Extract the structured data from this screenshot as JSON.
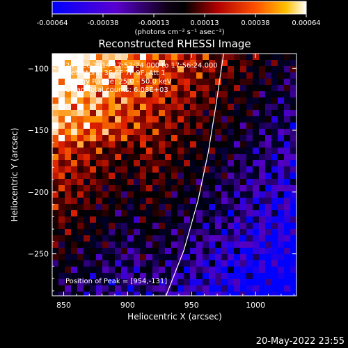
{
  "chart_data": {
    "type": "heatmap",
    "title": "Reconstructed RHESSI Image",
    "xlabel": "Heliocentric X (arcsec)",
    "ylabel": "Heliocentric Y (arcsec)",
    "xlim": [
      841,
      1032
    ],
    "ylim": [
      -284,
      -88
    ],
    "xticks": [
      850,
      900,
      950,
      1000
    ],
    "yticks": [
      -100,
      -150,
      -200,
      -250
    ],
    "colorbar": {
      "ticks": [
        "-0.00064",
        "-0.00038",
        "-0.00013",
        "0.00013",
        "0.00038",
        "0.00064"
      ],
      "range": [
        -0.00064,
        0.00064
      ],
      "unit_text": "(photons cm⁻² s⁻¹ asec⁻²)"
    },
    "annotations": [
      "24-Dec-2014 17:52:24.000 to 17:56:24.000",
      "Detectors: 3F 6F 7F 9F, Att 1",
      "Energy Range: 25.0 - 50.0 keV",
      "Clean    Total counts: 6.08E+03"
    ],
    "peak_label": "Position of Peak = [954,-131]",
    "limb_curve": [
      [
        930,
        -284
      ],
      [
        944,
        -247
      ],
      [
        955,
        -207
      ],
      [
        963,
        -168
      ],
      [
        969,
        -130
      ],
      [
        975,
        -88
      ]
    ],
    "grid": false
  },
  "timestamp": "20-May-2022 23:55",
  "colors": {
    "background": "#000000",
    "foreground": "#ffffff",
    "colormap": [
      "#0000ff",
      "#5500c0",
      "#00002a",
      "#000000",
      "#6a0000",
      "#e02000",
      "#ff9000",
      "#ffffff"
    ]
  }
}
